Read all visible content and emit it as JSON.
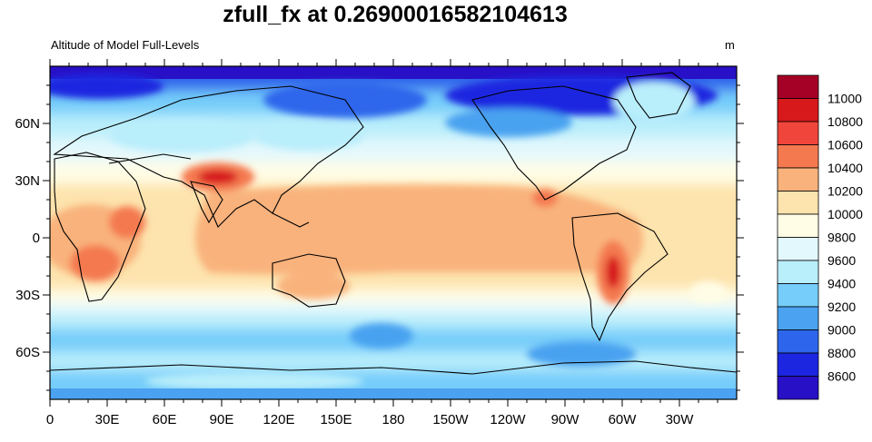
{
  "title": "zfull_fx at 0.26900016582104613",
  "subtitle_left": "Altitude of Model Full-Levels",
  "subtitle_right": "m",
  "x_ticks": [
    "0",
    "30E",
    "60E",
    "90E",
    "120E",
    "150E",
    "180",
    "150W",
    "120W",
    "90W",
    "60W",
    "30W"
  ],
  "y_ticks": [
    "60N",
    "30N",
    "0",
    "30S",
    "60S"
  ],
  "colorbar": {
    "levels": [
      "11000",
      "10800",
      "10600",
      "10400",
      "10200",
      "10000",
      "9800",
      "9600",
      "9400",
      "9200",
      "9000",
      "8800",
      "8600"
    ],
    "colors": [
      "#a50026",
      "#d7191c",
      "#f0453a",
      "#f4794f",
      "#f9b27c",
      "#fde3ad",
      "#fffde6",
      "#e3f8fd",
      "#b9eefb",
      "#76cdfa",
      "#4aa2f0",
      "#2d66ec",
      "#1c26e0",
      "#2810c6"
    ]
  },
  "colors": {
    "land_outline": "#000000",
    "polar_blue": "#1c2fe6",
    "tropical_orange": "#f9b27c",
    "hotspot_red": "#e03a2a"
  }
}
